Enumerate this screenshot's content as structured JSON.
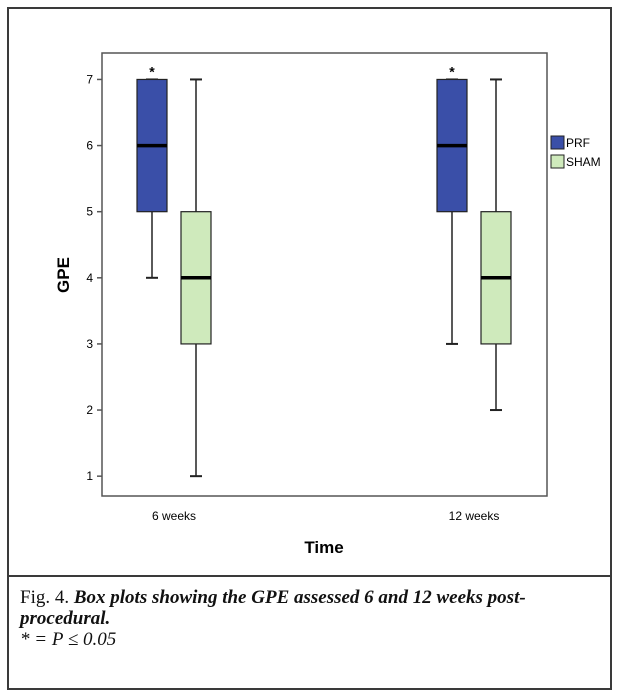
{
  "chart_data": {
    "type": "box",
    "xlabel": "Time",
    "ylabel": "GPE",
    "ylim": [
      0.7,
      7.4
    ],
    "yticks": [
      1,
      2,
      3,
      4,
      5,
      6,
      7
    ],
    "categories": [
      "6 weeks",
      "12 weeks"
    ],
    "series": [
      {
        "name": "PRF",
        "color": "#3a4fa8",
        "boxes": [
          {
            "category": "6 weeks",
            "min": 4,
            "q1": 5,
            "median": 6,
            "q3": 7,
            "max": 7,
            "marker": "*"
          },
          {
            "category": "12 weeks",
            "min": 3,
            "q1": 5,
            "median": 6,
            "q3": 7,
            "max": 7,
            "marker": "*"
          }
        ]
      },
      {
        "name": "SHAM",
        "color": "#cfeabc",
        "boxes": [
          {
            "category": "6 weeks",
            "min": 1,
            "q1": 3,
            "median": 4,
            "q3": 5,
            "max": 7
          },
          {
            "category": "12 weeks",
            "min": 2,
            "q1": 3,
            "median": 4,
            "q3": 5,
            "max": 7
          }
        ]
      }
    ],
    "legend_position": "right"
  },
  "caption": {
    "fig_num": "Fig. 4.",
    "text": "Box plots showing the GPE assessed 6 and 12 weeks post-procedural.",
    "significance": "* = P ≤ 0.05"
  }
}
